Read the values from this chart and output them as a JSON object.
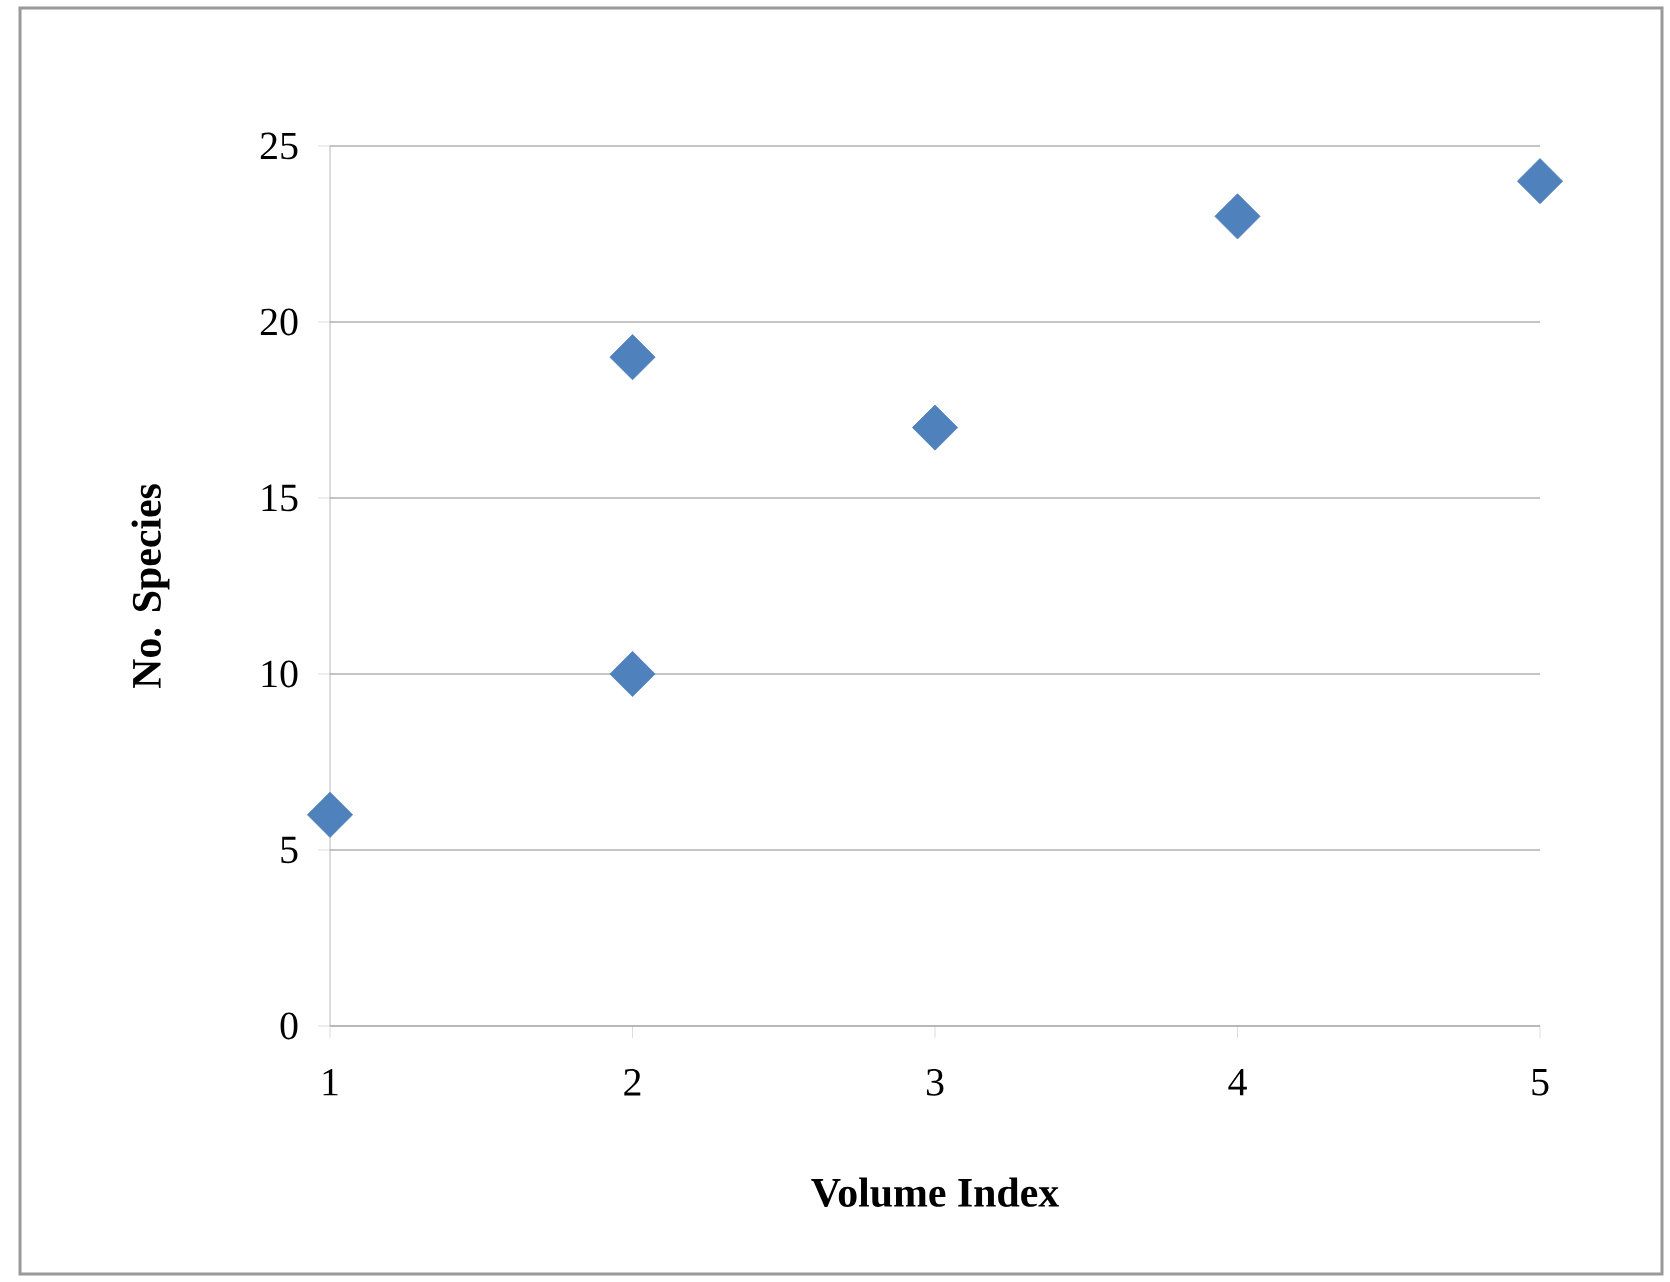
{
  "chart_data": {
    "type": "scatter",
    "xlabel": "Volume Index",
    "ylabel": "No. Species",
    "series": [
      {
        "color": "#4f81bd",
        "x": [
          1,
          2,
          2,
          3,
          4,
          5
        ],
        "values": [
          6,
          19,
          10,
          17,
          23,
          24
        ]
      }
    ],
    "xlim": [
      1,
      5
    ],
    "xticks": [
      1,
      2,
      3,
      4,
      5
    ],
    "ylim": [
      0,
      25
    ],
    "yticks": [
      0,
      5,
      10,
      15,
      20,
      25
    ],
    "grid": "y",
    "marker": "diamond"
  }
}
